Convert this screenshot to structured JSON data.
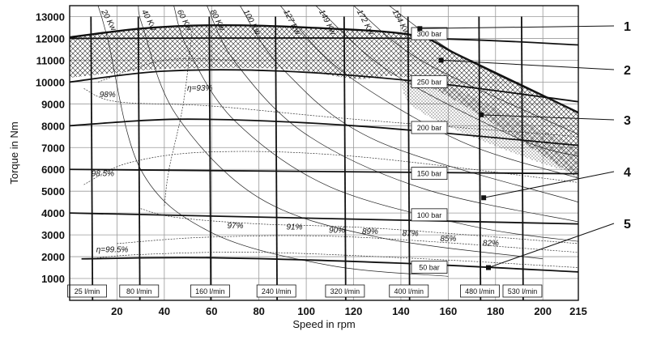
{
  "chart_data": {
    "type": "line",
    "xlabel": "Speed in rpm",
    "ylabel": "Torque in Nm",
    "xlim": [
      0,
      215
    ],
    "ylim": [
      0,
      13500
    ],
    "x_ticks": [
      20,
      40,
      60,
      80,
      100,
      120,
      140,
      160,
      180,
      200,
      215
    ],
    "y_ticks": [
      1000,
      2000,
      3000,
      4000,
      5000,
      6000,
      7000,
      8000,
      9000,
      10000,
      11000,
      12000,
      13000
    ],
    "grid": true,
    "pressure_lines": [
      {
        "label": "300 bar",
        "points": [
          [
            0,
            12000
          ],
          [
            145,
            12000
          ],
          [
            215,
            11700
          ]
        ],
        "label_at": [
          152,
          12200
        ]
      },
      {
        "label": "250 bar",
        "points": [
          [
            0,
            10000
          ],
          [
            40,
            10500
          ],
          [
            90,
            10500
          ],
          [
            150,
            10000
          ],
          [
            215,
            9100
          ]
        ],
        "label_at": [
          152,
          10000
        ]
      },
      {
        "label": "200 bar",
        "points": [
          [
            0,
            8000
          ],
          [
            50,
            8300
          ],
          [
            120,
            8000
          ],
          [
            215,
            7100
          ]
        ],
        "label_at": [
          152,
          7900
        ]
      },
      {
        "label": "150 bar",
        "points": [
          [
            0,
            6000
          ],
          [
            215,
            5800
          ]
        ],
        "label_at": [
          152,
          5800
        ]
      },
      {
        "label": "100 bar",
        "points": [
          [
            0,
            4000
          ],
          [
            215,
            3500
          ]
        ],
        "label_at": [
          152,
          3900
        ]
      },
      {
        "label": "50 bar",
        "points": [
          [
            5,
            1900
          ],
          [
            60,
            1950
          ],
          [
            140,
            1700
          ],
          [
            215,
            1300
          ]
        ],
        "label_at": [
          152,
          1500
        ]
      }
    ],
    "flow_lines": [
      {
        "label": "25 l/min",
        "x": 9,
        "label_at_x": 6
      },
      {
        "label": "80 l/min",
        "x": 29,
        "label_at_x": 28
      },
      {
        "label": "160 l/min",
        "x": 59,
        "label_at_x": 58
      },
      {
        "label": "240 l/min",
        "x": 87,
        "label_at_x": 86
      },
      {
        "label": "320 l/min",
        "x": 116,
        "label_at_x": 115
      },
      {
        "label": "400 l/min",
        "x": 143,
        "label_at_x": 142
      },
      {
        "label": "480 l/min",
        "x": 173,
        "label_at_x": 172
      },
      {
        "label": "530 l/min",
        "x": 191,
        "label_at_x": 190
      }
    ],
    "power_lines": [
      {
        "label": "20 Kw",
        "points": [
          [
            12,
            13500
          ],
          [
            16,
            12000
          ],
          [
            30,
            6000
          ],
          [
            60,
            3100
          ],
          [
            110,
            1600
          ],
          [
            160,
            1100
          ]
        ]
      },
      {
        "label": "40 Kw",
        "points": [
          [
            29,
            13500
          ],
          [
            31,
            12500
          ],
          [
            45,
            8500
          ],
          [
            80,
            4700
          ],
          [
            130,
            2900
          ],
          [
            200,
            1900
          ]
        ]
      },
      {
        "label": "60 Kw",
        "points": [
          [
            44,
            13500
          ],
          [
            50,
            11500
          ],
          [
            70,
            8200
          ],
          [
            110,
            5200
          ],
          [
            170,
            3400
          ],
          [
            215,
            2700
          ]
        ]
      },
      {
        "label": "80 Kw",
        "points": [
          [
            58,
            13500
          ],
          [
            70,
            10900
          ],
          [
            100,
            7600
          ],
          [
            150,
            5100
          ],
          [
            215,
            3600
          ]
        ]
      },
      {
        "label": "100 Kw",
        "points": [
          [
            72,
            13500
          ],
          [
            90,
            10600
          ],
          [
            130,
            7300
          ],
          [
            215,
            4500
          ]
        ]
      },
      {
        "label": "127 Kw",
        "points": [
          [
            89,
            13500
          ],
          [
            115,
            10500
          ],
          [
            165,
            7300
          ],
          [
            215,
            5600
          ]
        ]
      },
      {
        "label": "149 Kw",
        "points": [
          [
            104,
            13500
          ],
          [
            135,
            10500
          ],
          [
            190,
            7400
          ],
          [
            215,
            6600
          ]
        ]
      },
      {
        "label": "172 Kw",
        "points": [
          [
            120,
            13500
          ],
          [
            150,
            10900
          ],
          [
            215,
            7600
          ]
        ]
      },
      {
        "label": "194 Kw",
        "points": [
          [
            135,
            13500
          ],
          [
            165,
            11200
          ],
          [
            215,
            8600
          ]
        ]
      }
    ],
    "efficiency_labels": [
      "98%",
      "98.5%",
      "η=99.5%",
      "η=93%",
      "97%",
      "91%",
      "90%",
      "89%",
      "87%",
      "85%",
      "82%"
    ],
    "callouts": [
      "1",
      "2",
      "3",
      "4",
      "5"
    ]
  }
}
